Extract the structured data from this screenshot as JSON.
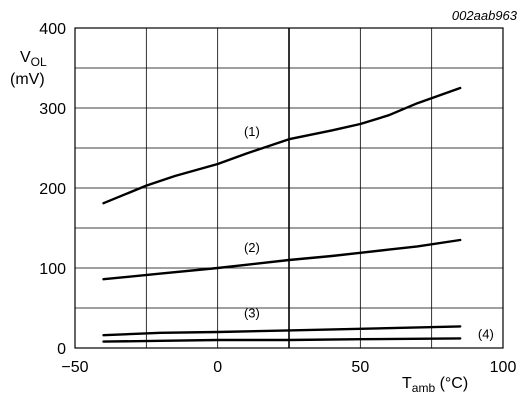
{
  "chart_data": {
    "type": "line",
    "figure_code": "002aab963",
    "ylabel_main": "V",
    "ylabel_sub": "OL",
    "ylabel_unit": "(mV)",
    "xlabel_main": "T",
    "xlabel_sub": "amb",
    "xlabel_unit": " (°C)",
    "xlim": [
      -50,
      100
    ],
    "ylim": [
      0,
      400
    ],
    "x_ticks": [
      -50,
      0,
      50,
      100
    ],
    "x_tick_labels": [
      "−50",
      "0",
      "50",
      "100"
    ],
    "y_ticks": [
      0,
      100,
      200,
      300,
      400
    ],
    "y_tick_labels": [
      "0",
      "100",
      "200",
      "300",
      "400"
    ],
    "x_grid": [
      -25,
      0,
      25,
      50,
      75
    ],
    "y_grid": [
      50,
      100,
      150,
      200,
      250,
      300,
      350
    ],
    "emphasized_gridline_x": 25,
    "grid": true,
    "series": [
      {
        "name": "(1)",
        "x": [
          -40,
          -25,
          -15,
          0,
          10,
          25,
          40,
          50,
          60,
          70,
          85
        ],
        "y": [
          181,
          203,
          215,
          230,
          243,
          261,
          272,
          280,
          291,
          306,
          325
        ]
      },
      {
        "name": "(2)",
        "x": [
          -40,
          -20,
          0,
          10,
          25,
          40,
          50,
          60,
          70,
          85
        ],
        "y": [
          86,
          93,
          100,
          104,
          110,
          115,
          119,
          123,
          127,
          135
        ]
      },
      {
        "name": "(3)",
        "x": [
          -40,
          -20,
          0,
          25,
          50,
          85
        ],
        "y": [
          16,
          19,
          20,
          22,
          24,
          27
        ]
      },
      {
        "name": "(4)",
        "x": [
          -40,
          -20,
          0,
          25,
          50,
          85
        ],
        "y": [
          8,
          9,
          10,
          10,
          11,
          12
        ]
      }
    ],
    "labels": [
      {
        "series": "(1)",
        "text": "(1)",
        "x": 12,
        "y": 265
      },
      {
        "series": "(2)",
        "text": "(2)",
        "x": 12,
        "y": 120
      },
      {
        "series": "(3)",
        "text": "(3)",
        "x": 12,
        "y": 38
      },
      {
        "series": "(4)",
        "text": "(4)",
        "x": 94,
        "y": 12
      }
    ]
  }
}
